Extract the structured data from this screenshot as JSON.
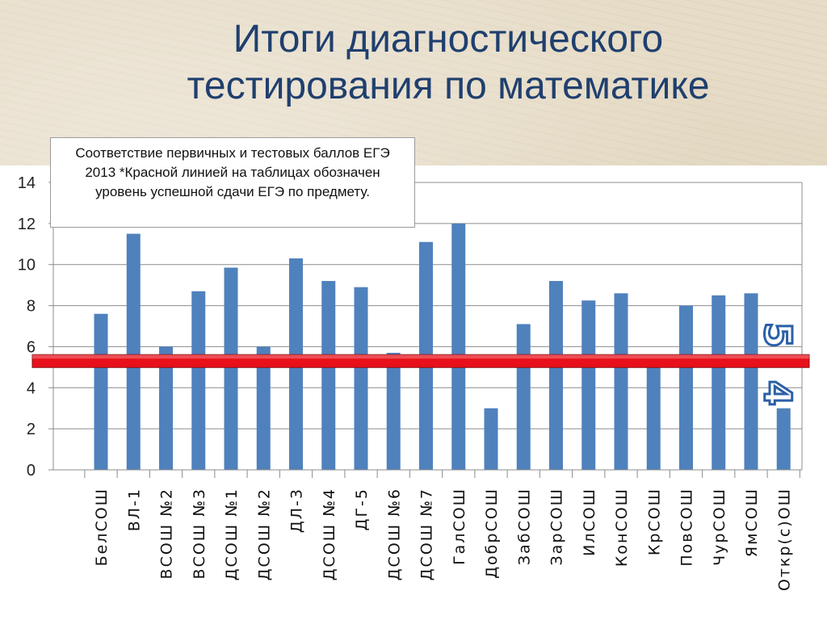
{
  "title": {
    "line1": "Итоги диагностического",
    "line2": "тестирования по математике"
  },
  "note": "Соответствие первичных и тестовых баллов ЕГЭ 2013 *Красной линией на таблицах обозначен уровень успешной сдачи ЕГЭ по предмету.",
  "chart_data": {
    "type": "bar",
    "categories": [
      "БелСОШ",
      "ВЛ-1",
      "ВСОШ №2",
      "ВСОШ №3",
      "ДСОШ №1",
      "ДСОШ №2",
      "ДЛ-3",
      "ДСОШ №4",
      "ДГ-5",
      "ДСОШ №6",
      "ДСОШ №7",
      "ГалСОШ",
      "ДобрСОШ",
      "ЗабСОШ",
      "ЗарСОШ",
      "ИлСОШ",
      "КонСОШ",
      "КрСОШ",
      "ПовСОШ",
      "ЧурСОШ",
      "ЯмСОШ",
      "Откр(с)ОШ"
    ],
    "values": [
      7.6,
      11.5,
      6.0,
      8.7,
      9.85,
      6.0,
      10.3,
      9.2,
      8.9,
      5.7,
      11.1,
      12.0,
      3.0,
      7.1,
      9.2,
      8.25,
      8.6,
      5.6,
      8.0,
      8.5,
      8.6,
      3.0
    ],
    "yticks": [
      "0",
      "2",
      "4",
      "6",
      "8",
      "10",
      "12",
      "14"
    ],
    "ylim": [
      0,
      14
    ],
    "threshold": 5.3,
    "threshold_color": "#e8101a",
    "bar_color": "#4f81bd",
    "grid": true,
    "label_above": "5",
    "label_below": "4"
  }
}
